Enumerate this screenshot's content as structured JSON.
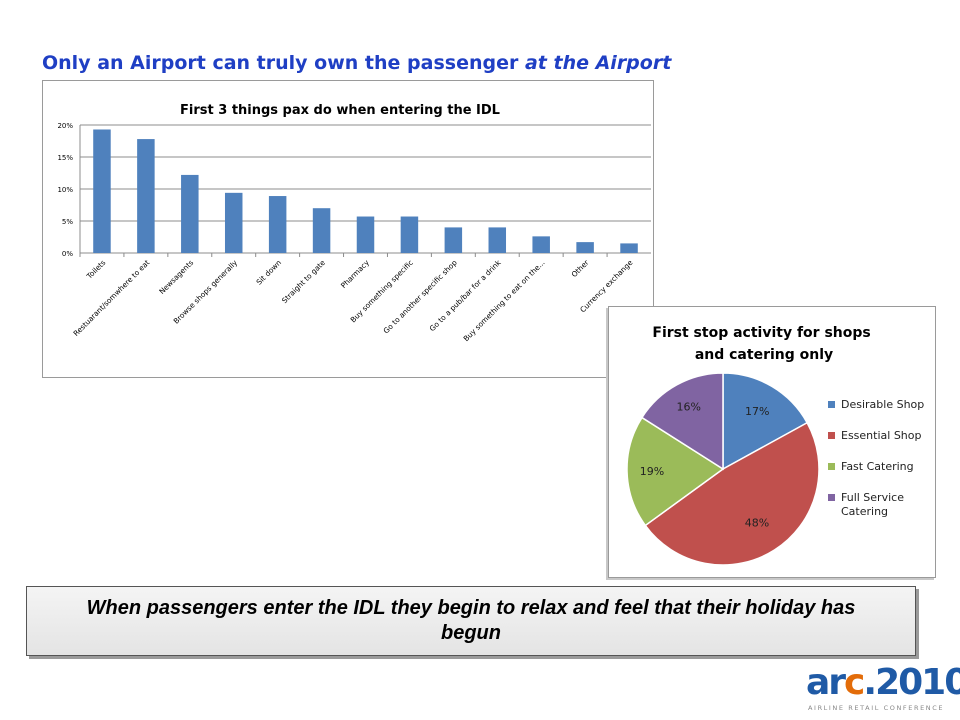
{
  "slide": {
    "title_main": "Only an Airport can truly own the passenger ",
    "title_emph": "at the Airport",
    "callout": "When passengers enter the IDL they begin to relax and feel that their holiday has begun"
  },
  "logo": {
    "text_arc": "arc",
    "text_year": ".2010",
    "subtitle": "AIRLINE RETAIL CONFERENCE",
    "colors": {
      "ar": "#1f5aa6",
      "c": "#e36c09",
      "year": "#1f5aa6"
    }
  },
  "chart_data": [
    {
      "type": "bar",
      "title": "First 3 things pax do when entering the IDL",
      "categories": [
        "Toilets",
        "Restuarant/somwhere to eat",
        "Newsagents",
        "Browse shops generally",
        "Sit down",
        "Straight to gate",
        "Pharmacy",
        "Buy something specific",
        "Go to another specific shop",
        "Go to a pub/bar for a drink",
        "Buy something to eat on the...",
        "Other",
        "Currency exchange"
      ],
      "values": [
        19.3,
        17.8,
        12.2,
        9.4,
        8.9,
        7.0,
        5.7,
        5.7,
        4.0,
        4.0,
        2.6,
        1.7,
        1.5
      ],
      "ylim": [
        0,
        20
      ],
      "yticks": [
        0,
        5,
        10,
        15,
        20
      ],
      "ytick_labels": [
        "0%",
        "5%",
        "10%",
        "15%",
        "20%"
      ],
      "grid": true,
      "color": "#4f81bd"
    },
    {
      "type": "pie",
      "title": "First stop activity for shops and catering only",
      "slices": [
        {
          "label": "Desirable Shop",
          "value": 17,
          "value_label": "17%",
          "color": "#4f81bd"
        },
        {
          "label": "Essential Shop",
          "value": 48,
          "value_label": "48%",
          "color": "#c0504d"
        },
        {
          "label": "Fast Catering",
          "value": 19,
          "value_label": "19%",
          "color": "#9bbb59"
        },
        {
          "label": "Full Service Catering",
          "value": 16,
          "value_label": "16%",
          "color": "#8064a2"
        }
      ],
      "legend_position": "right"
    }
  ]
}
